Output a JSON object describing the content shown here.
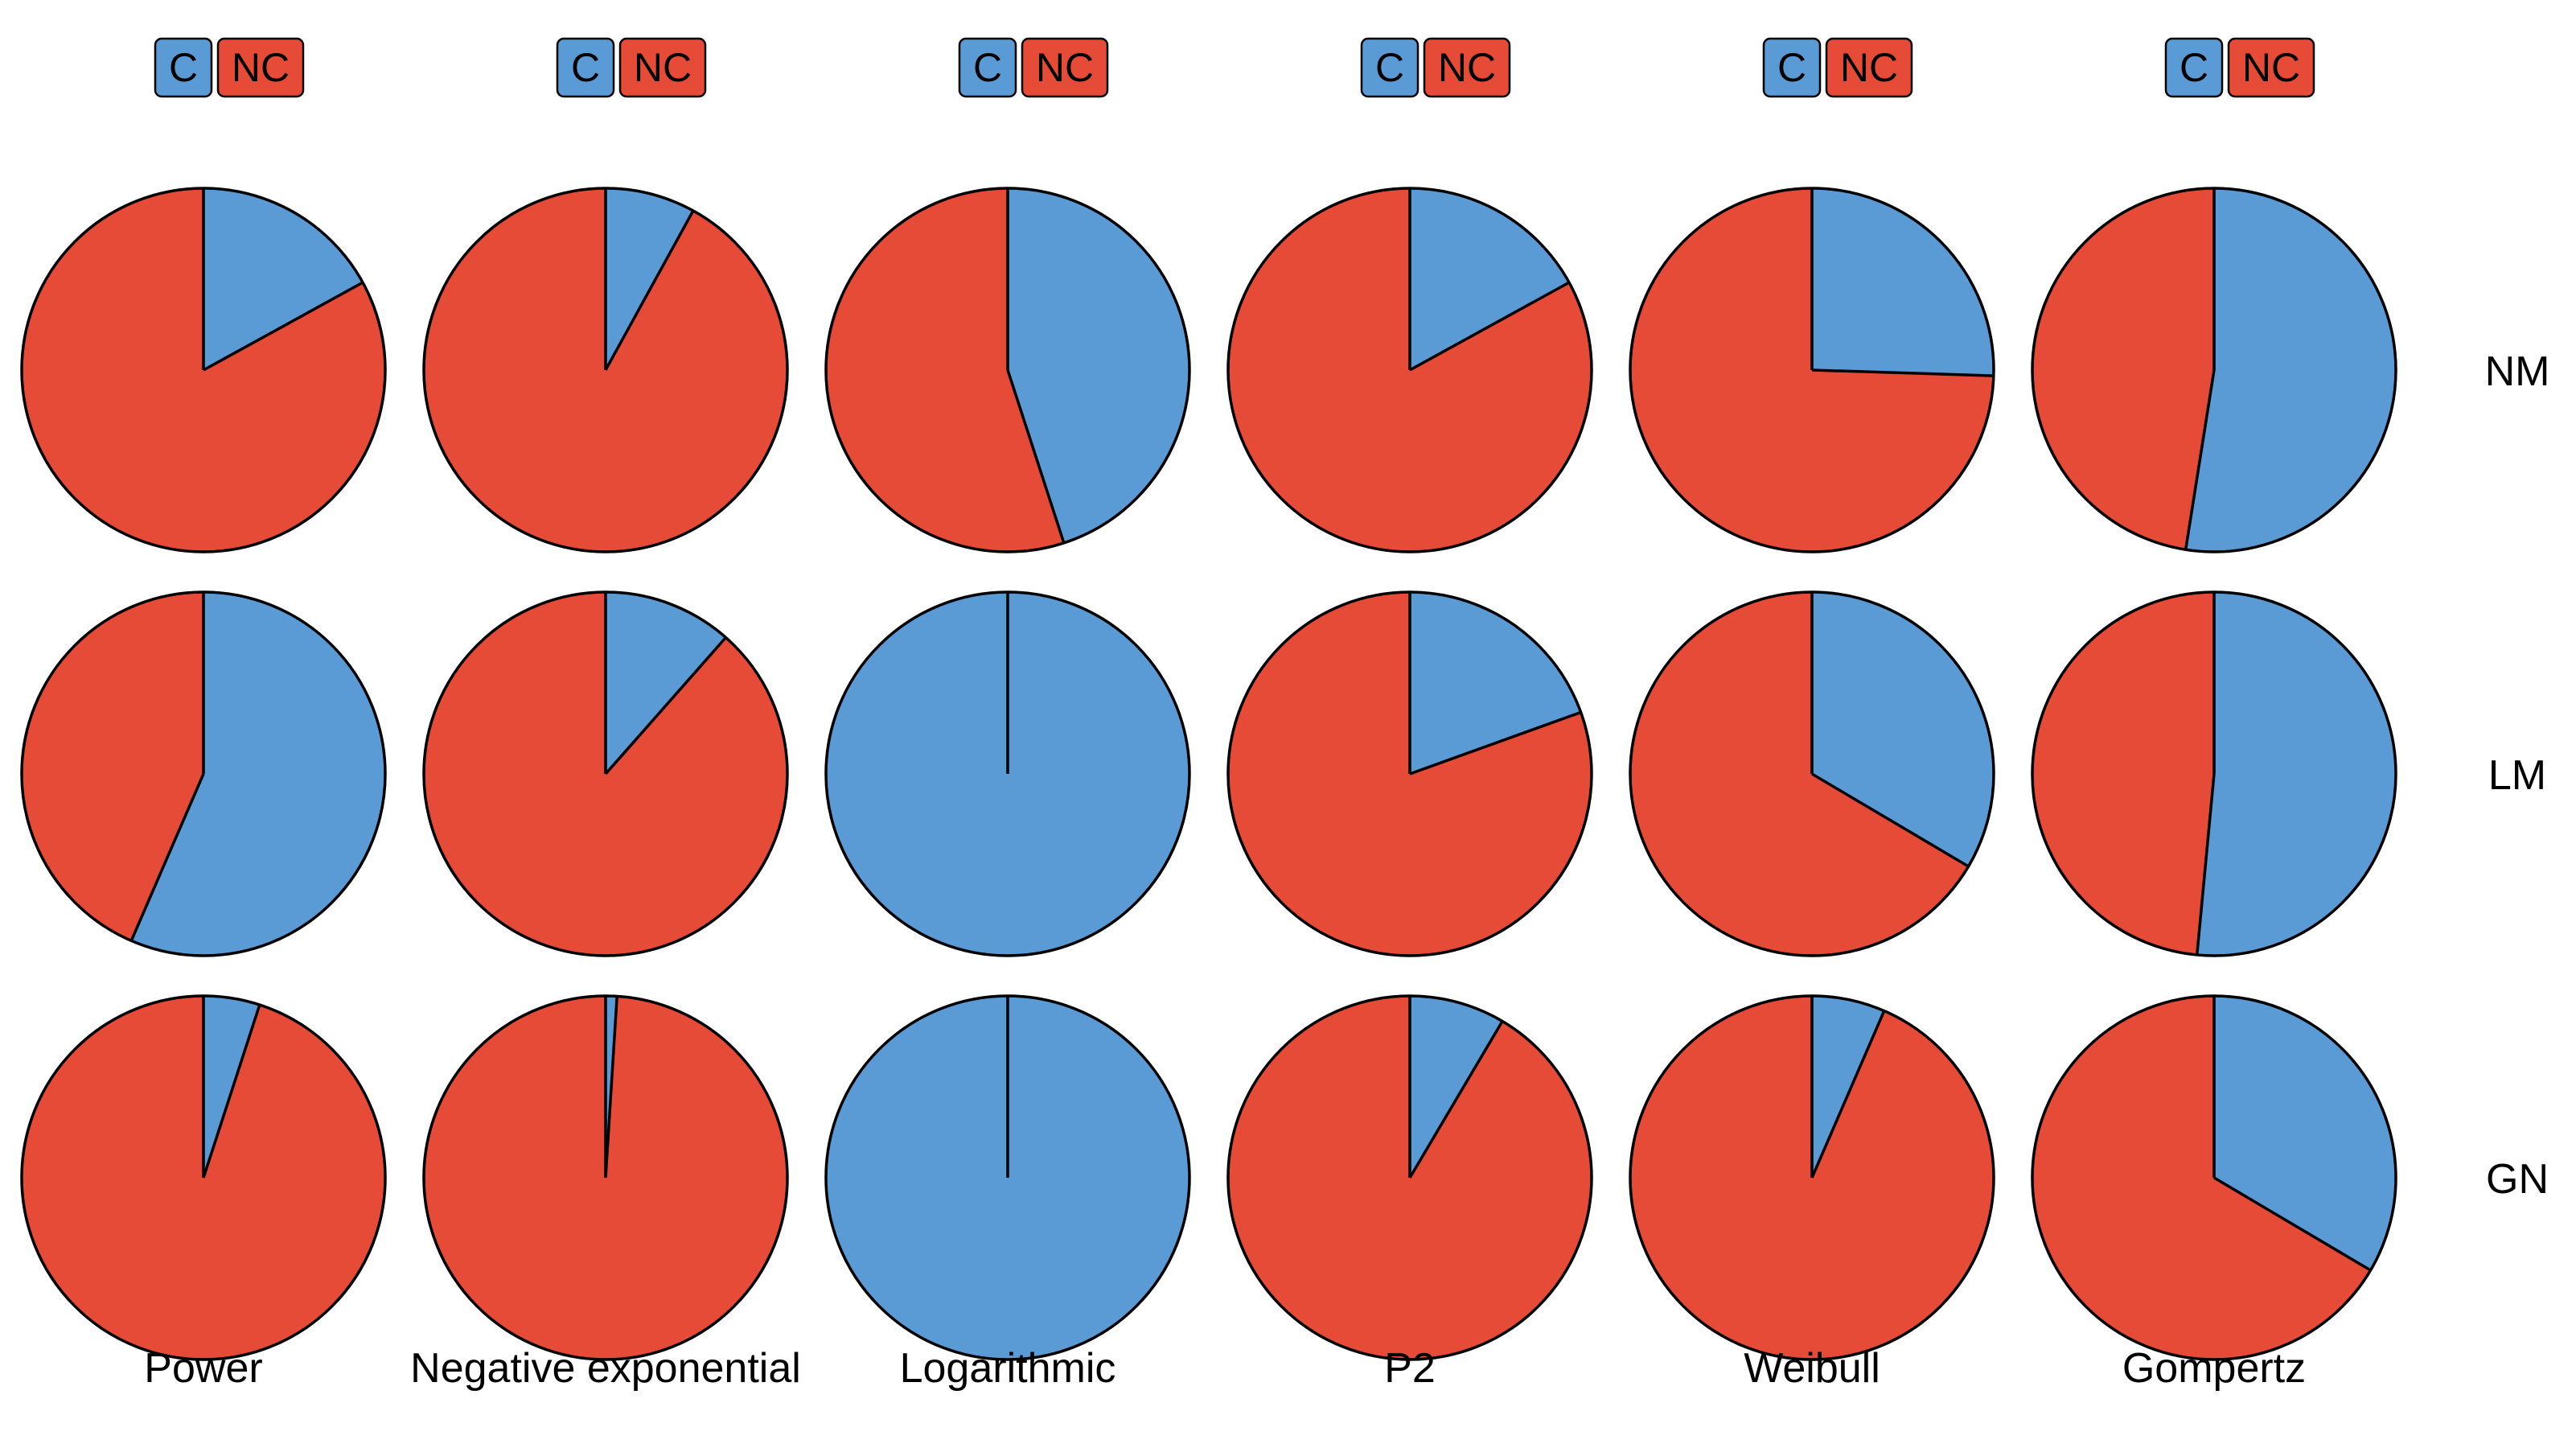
{
  "colors": {
    "C": "#5b9bd5",
    "NC": "#e54b36",
    "outline": "#000000"
  },
  "chart_data": {
    "type": "pie",
    "legend": {
      "entries": [
        "C",
        "NC"
      ],
      "placement": "top, repeated above each column"
    },
    "columns": [
      "Power",
      "Negative exponential",
      "Logarithmic",
      "P2",
      "Weibull",
      "Gompertz"
    ],
    "rows": [
      "NM",
      "LM",
      "GN"
    ],
    "slice_order": [
      "C",
      "NC"
    ],
    "cells": [
      [
        {
          "row": "NM",
          "column": "Power",
          "C": 0.17,
          "NC": 0.83
        },
        {
          "row": "NM",
          "column": "Negative exponential",
          "C": 0.08,
          "NC": 0.92
        },
        {
          "row": "NM",
          "column": "Logarithmic",
          "C": 0.45,
          "NC": 0.55
        },
        {
          "row": "NM",
          "column": "P2",
          "C": 0.17,
          "NC": 0.83
        },
        {
          "row": "NM",
          "column": "Weibull",
          "C": 0.255,
          "NC": 0.745
        },
        {
          "row": "NM",
          "column": "Gompertz",
          "C": 0.525,
          "NC": 0.475
        }
      ],
      [
        {
          "row": "LM",
          "column": "Power",
          "C": 0.565,
          "NC": 0.435
        },
        {
          "row": "LM",
          "column": "Negative exponential",
          "C": 0.115,
          "NC": 0.885
        },
        {
          "row": "LM",
          "column": "Logarithmic",
          "C": 1.0,
          "NC": 0.0
        },
        {
          "row": "LM",
          "column": "P2",
          "C": 0.195,
          "NC": 0.805
        },
        {
          "row": "LM",
          "column": "Weibull",
          "C": 0.335,
          "NC": 0.665
        },
        {
          "row": "LM",
          "column": "Gompertz",
          "C": 0.515,
          "NC": 0.485
        }
      ],
      [
        {
          "row": "GN",
          "column": "Power",
          "C": 0.05,
          "NC": 0.95
        },
        {
          "row": "GN",
          "column": "Negative exponential",
          "C": 0.01,
          "NC": 0.99
        },
        {
          "row": "GN",
          "column": "Logarithmic",
          "C": 1.0,
          "NC": 0.0
        },
        {
          "row": "GN",
          "column": "P2",
          "C": 0.085,
          "NC": 0.915
        },
        {
          "row": "GN",
          "column": "Weibull",
          "C": 0.065,
          "NC": 0.935
        },
        {
          "row": "GN",
          "column": "Gompertz",
          "C": 0.335,
          "NC": 0.665
        }
      ]
    ]
  }
}
